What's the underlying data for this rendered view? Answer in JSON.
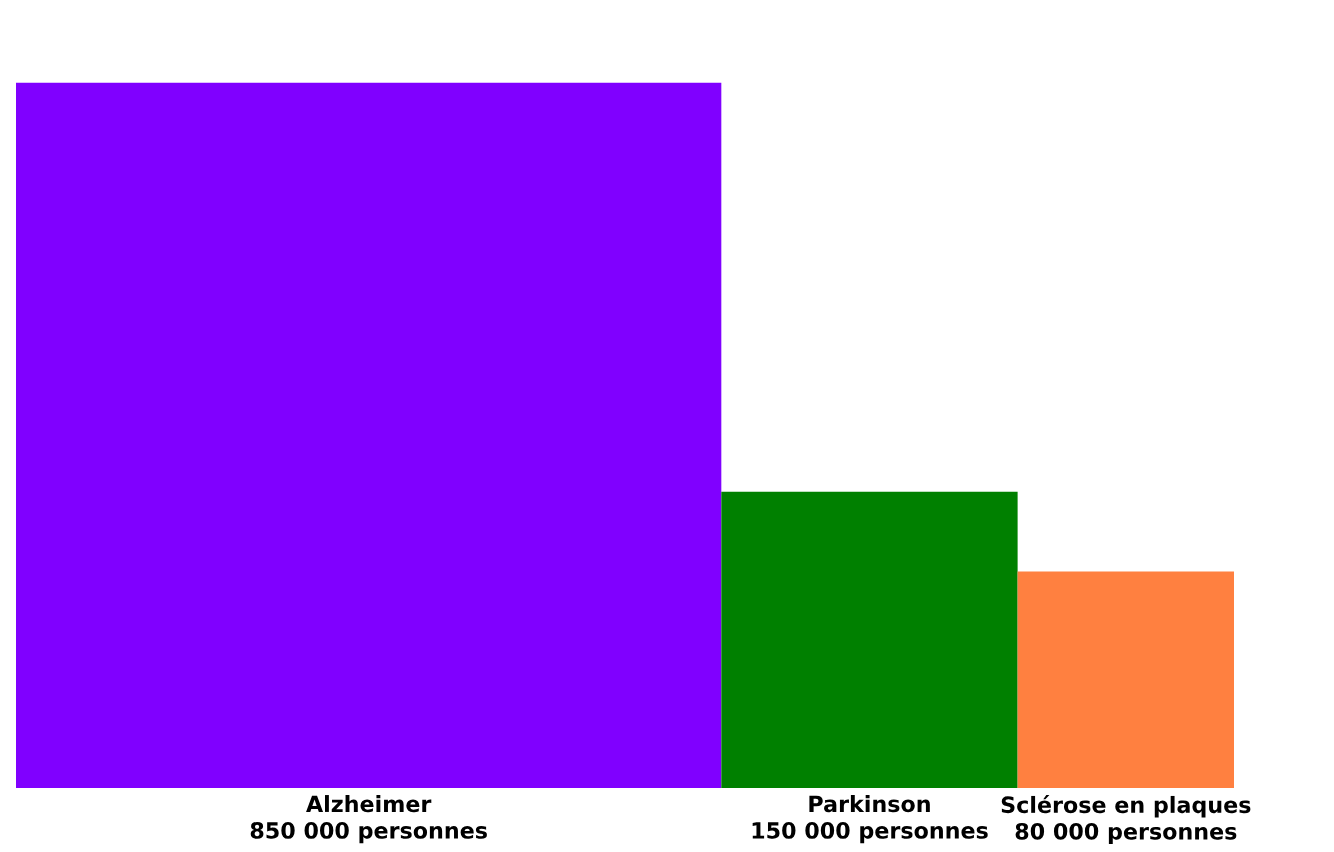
{
  "chart_data": {
    "type": "other",
    "categories": [
      "Alzheimer",
      "Parkinson",
      "Sclérose en plaques"
    ],
    "values": [
      850000,
      150000,
      80000
    ],
    "value_labels": [
      "850 000 personnes",
      "150 000 personnes",
      "80 000 personnes"
    ],
    "colors": [
      "#8000ff",
      "#008000",
      "#ff8040"
    ]
  }
}
